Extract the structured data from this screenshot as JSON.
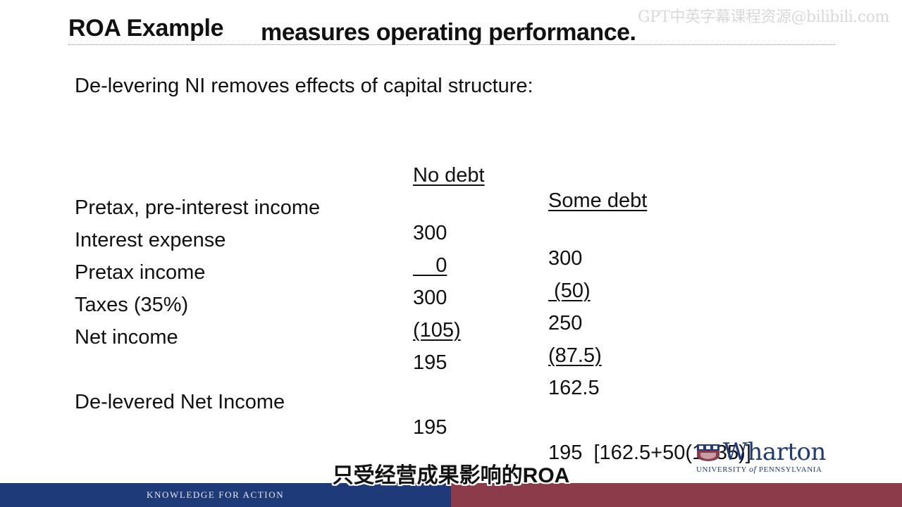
{
  "slide": {
    "title": "ROA Example",
    "intro": "De-levering NI removes effects of capital structure:"
  },
  "overlay": {
    "subtitle_top": "measures operating performance.",
    "subtitle_bottom": "只受经营成果影响的ROA",
    "watermark": "GPT中英字幕课程资源@bilibili.com"
  },
  "table": {
    "headers": [
      "No debt",
      "Some debt"
    ],
    "rows": [
      {
        "label": "Pretax, pre-interest income",
        "no_debt": "300",
        "some_debt": "300"
      },
      {
        "label": "Interest expense",
        "no_debt": "    0",
        "some_debt": " (50)"
      },
      {
        "label": "Pretax income",
        "no_debt": "300",
        "some_debt": "250"
      },
      {
        "label": "Taxes (35%)",
        "no_debt": "(105)",
        "some_debt": "(87.5)"
      },
      {
        "label": "Net income",
        "no_debt": "195",
        "some_debt": "162.5"
      }
    ],
    "delevered": {
      "label": "De-levered Net Income",
      "no_debt": "195",
      "some_debt": "195  [162.5+50(1-.35)]"
    }
  },
  "branding": {
    "logo_word": "Wharton",
    "logo_sub_1": "UNIVERSITY",
    "logo_sub_of": "of",
    "logo_sub_2": "PENNSYLVANIA",
    "footer_text": "KNOWLEDGE FOR ACTION",
    "colors": {
      "navy": "#1f3a78",
      "maroon": "#8c3b4a"
    }
  }
}
